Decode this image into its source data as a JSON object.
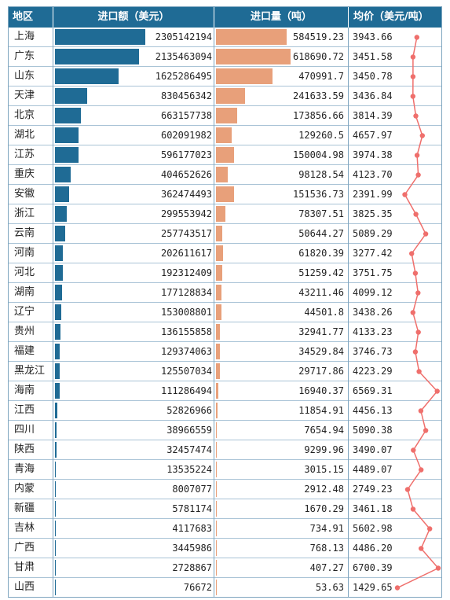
{
  "header": {
    "col_region": "地区",
    "col_import_value": "进口额（美元）",
    "col_import_volume": "进口量（吨）",
    "col_avg_price": "均价（美元/吨）"
  },
  "colors": {
    "header_bg": "#1f6b95",
    "bar_value": "#1f6b95",
    "bar_volume": "#e8a07a",
    "price_line": "#ef6f6c"
  },
  "chart_data": {
    "type": "table",
    "title": "",
    "columns": [
      "地区",
      "进口额（美元）",
      "进口量（吨）",
      "均价（美元/吨）"
    ],
    "rows": [
      {
        "region": "上海",
        "value": 2305142194,
        "volume": 584519.23,
        "price": 3943.66
      },
      {
        "region": "广东",
        "value": 2135463094,
        "volume": 618690.72,
        "price": 3451.58
      },
      {
        "region": "山东",
        "value": 1625286495,
        "volume": 470991.7,
        "price": 3450.78
      },
      {
        "region": "天津",
        "value": 830456342,
        "volume": 241633.59,
        "price": 3436.84
      },
      {
        "region": "北京",
        "value": 663157738,
        "volume": 173856.66,
        "price": 3814.39
      },
      {
        "region": "湖北",
        "value": 602091982,
        "volume": 129260.5,
        "price": 4657.97
      },
      {
        "region": "江苏",
        "value": 596177023,
        "volume": 150004.98,
        "price": 3974.38
      },
      {
        "region": "重庆",
        "value": 404652626,
        "volume": 98128.54,
        "price": 4123.7
      },
      {
        "region": "安徽",
        "value": 362474493,
        "volume": 151536.73,
        "price": 2391.99
      },
      {
        "region": "浙江",
        "value": 299553942,
        "volume": 78307.51,
        "price": 3825.35
      },
      {
        "region": "云南",
        "value": 257743517,
        "volume": 50644.27,
        "price": 5089.29
      },
      {
        "region": "河南",
        "value": 202611617,
        "volume": 61820.39,
        "price": 3277.42
      },
      {
        "region": "河北",
        "value": 192312409,
        "volume": 51259.42,
        "price": 3751.75
      },
      {
        "region": "湖南",
        "value": 177128834,
        "volume": 43211.46,
        "price": 4099.12
      },
      {
        "region": "辽宁",
        "value": 153008801,
        "volume": 44501.8,
        "price": 3438.26
      },
      {
        "region": "贵州",
        "value": 136155858,
        "volume": 32941.77,
        "price": 4133.23
      },
      {
        "region": "福建",
        "value": 129374063,
        "volume": 34529.84,
        "price": 3746.73
      },
      {
        "region": "黑龙江",
        "value": 125507034,
        "volume": 29717.86,
        "price": 4223.29
      },
      {
        "region": "海南",
        "value": 111286494,
        "volume": 16940.37,
        "price": 6569.31
      },
      {
        "region": "江西",
        "value": 52826966,
        "volume": 11854.91,
        "price": 4456.13
      },
      {
        "region": "四川",
        "value": 38966559,
        "volume": 7654.94,
        "price": 5090.38
      },
      {
        "region": "陕西",
        "value": 32457474,
        "volume": 9299.96,
        "price": 3490.07
      },
      {
        "region": "青海",
        "value": 13535224,
        "volume": 3015.15,
        "price": 4489.07
      },
      {
        "region": "内蒙",
        "value": 8007077,
        "volume": 2912.48,
        "price": 2749.23
      },
      {
        "region": "新疆",
        "value": 5781174,
        "volume": 1670.29,
        "price": 3461.18
      },
      {
        "region": "吉林",
        "value": 4117683,
        "volume": 734.91,
        "price": 5602.98
      },
      {
        "region": "广西",
        "value": 3445986,
        "volume": 768.13,
        "price": 4486.2
      },
      {
        "region": "甘肃",
        "value": 2728867,
        "volume": 407.27,
        "price": 6700.39
      },
      {
        "region": "山西",
        "value": 76672,
        "volume": 53.63,
        "price": 1429.65
      }
    ],
    "price_display": [
      "3943.66",
      "3451.58",
      "3450.78",
      "3436.84",
      "3814.39",
      "4657.97",
      "3974.38",
      "4123.70",
      "2391.99",
      "3825.35",
      "5089.29",
      "3277.42",
      "3751.75",
      "4099.12",
      "3438.26",
      "4133.23",
      "3746.73",
      "4223.29",
      "6569.31",
      "4456.13",
      "5090.38",
      "3490.07",
      "4489.07",
      "2749.23",
      "3461.18",
      "5602.98",
      "4486.20",
      "6700.39",
      "1429.65"
    ]
  }
}
